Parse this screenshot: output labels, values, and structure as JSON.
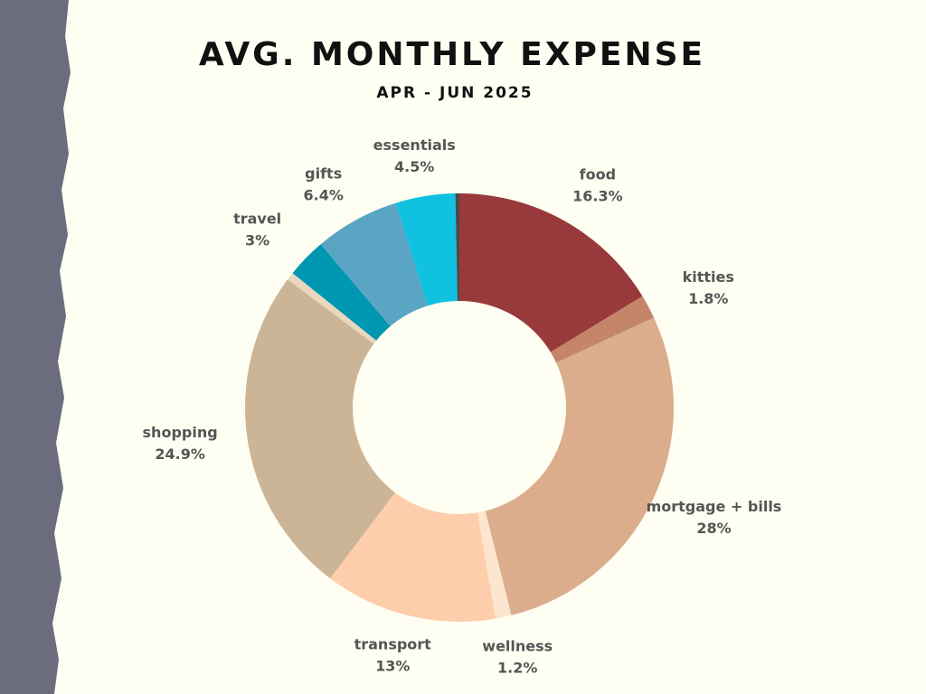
{
  "chart_data": {
    "type": "donut",
    "title": "AVG. MONTHLY EXPENSE",
    "subtitle": "APR - JUN 2025",
    "categories": [
      "food",
      "kitties",
      "mortgage + bills",
      "wellness",
      "transport",
      "shopping",
      null,
      "travel",
      "gifts",
      "essentials",
      null
    ],
    "values": [
      16.3,
      1.8,
      28,
      1.2,
      13,
      24.9,
      0.6,
      3,
      6.4,
      4.5,
      0.3
    ],
    "value_labels": [
      "16.3%",
      "1.8%",
      "28%",
      "1.2%",
      "13%",
      "24.9%",
      null,
      "3%",
      "6.4%",
      "4.5%",
      null
    ],
    "colors": [
      "#983a3b",
      "#c4856a",
      "#dbad8d",
      "#fde6d0",
      "#fecdab",
      "#ccb596",
      "#e9d7c0",
      "#0097b2",
      "#5aa4c4",
      "#10c1e0",
      "#4a4a4a"
    ]
  }
}
